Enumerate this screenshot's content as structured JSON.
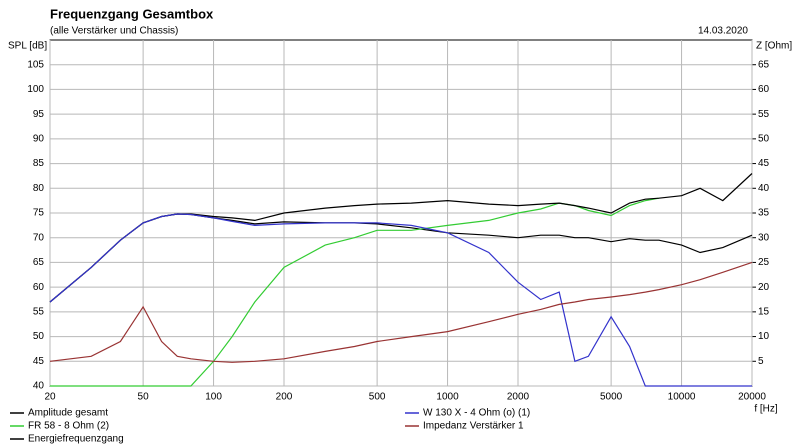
{
  "chart_data": {
    "type": "line",
    "title": "Frequenzgang Gesamtbox",
    "subtitle": "(alle Verstärker und Chassis)",
    "date": "14.03.2020",
    "y_label": "SPL [dB]",
    "y2_label": "Z [Ohm]",
    "x_label": "f [Hz]",
    "log_x": true,
    "grid": true,
    "x": [
      20,
      30,
      40,
      50,
      60,
      70,
      80,
      100,
      120,
      150,
      200,
      300,
      400,
      500,
      700,
      1000,
      1500,
      2000,
      2500,
      3000,
      3500,
      4000,
      5000,
      6000,
      7000,
      8000,
      10000,
      12000,
      15000,
      20000
    ],
    "xlim": [
      20,
      20000
    ],
    "xticks": [
      20,
      50,
      100,
      200,
      500,
      1000,
      2000,
      5000,
      10000,
      20000
    ],
    "ylim": [
      40,
      110
    ],
    "yticks": [
      40,
      45,
      50,
      55,
      60,
      65,
      70,
      75,
      80,
      85,
      90,
      95,
      100,
      105
    ],
    "y2lim": [
      0,
      70
    ],
    "y2ticks": [
      5,
      10,
      15,
      20,
      25,
      30,
      35,
      40,
      45,
      50,
      55,
      60,
      65
    ],
    "series": [
      {
        "name": "Amplitude gesamt",
        "color": "#000000",
        "values": [
          57,
          64,
          69.5,
          73,
          74.3,
          74.8,
          74.7,
          74,
          73.5,
          72.8,
          73.2,
          73,
          73,
          72.8,
          72,
          71,
          70.5,
          70,
          70.5,
          70.5,
          70,
          70,
          69.2,
          69.8,
          69.5,
          69.5,
          68.5,
          67,
          68,
          70.5
        ]
      },
      {
        "name": "FR 58 - 8 Ohm (2)",
        "color": "#33cc33",
        "values": [
          40,
          40,
          40,
          40,
          40,
          40,
          40,
          45,
          50,
          57,
          64,
          68.5,
          70,
          71.5,
          71.5,
          72.5,
          73.5,
          75,
          75.8,
          77,
          76.5,
          75.5,
          74.5,
          76.5,
          77.5,
          78,
          null,
          null,
          null,
          null
        ]
      },
      {
        "name": "Energiefrequenzgang",
        "color": "#000000",
        "values": [
          57,
          64,
          69.5,
          73,
          74.3,
          74.8,
          74.8,
          74.3,
          74,
          73.5,
          75,
          76,
          76.5,
          76.8,
          77,
          77.5,
          76.8,
          76.5,
          76.8,
          77,
          76.5,
          76,
          75,
          77,
          77.8,
          78,
          78.5,
          80,
          77.5,
          83
        ]
      },
      {
        "name": "W 130 X - 4 Ohm (o) (1)",
        "color": "#3333cc",
        "values": [
          57,
          64,
          69.5,
          73,
          74.3,
          74.8,
          74.7,
          74,
          73.3,
          72.5,
          72.8,
          73,
          73,
          73,
          72.5,
          71,
          67,
          61,
          57.5,
          59,
          45,
          46,
          54,
          48,
          40,
          40,
          40,
          40,
          40,
          40
        ]
      },
      {
        "name": "Impedanz Verstärker 1",
        "color": "#993333",
        "axis": "y2",
        "values": [
          5,
          6,
          9,
          16,
          9,
          6,
          5.5,
          5,
          4.8,
          5,
          5.5,
          7,
          8,
          9,
          10,
          11,
          13,
          14.5,
          15.5,
          16.5,
          17,
          17.5,
          18,
          18.5,
          19,
          19.5,
          20.5,
          21.5,
          23,
          25
        ]
      }
    ]
  }
}
